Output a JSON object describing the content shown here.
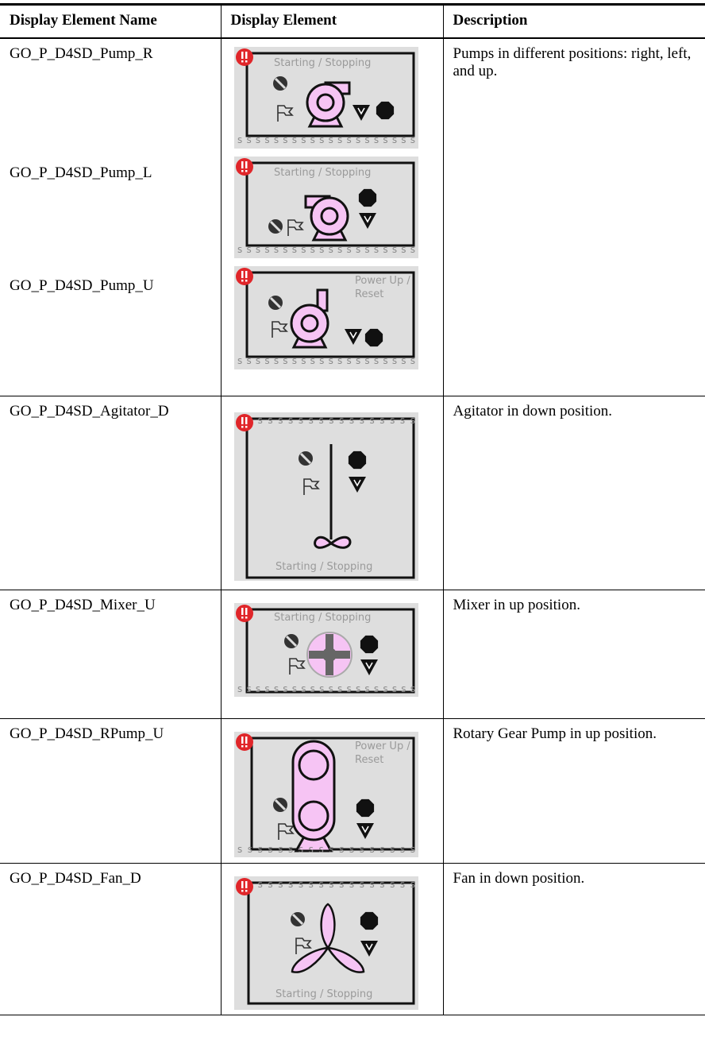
{
  "table": {
    "columns": [
      "Display Element Name",
      "Display Element",
      "Description"
    ],
    "rows": [
      {
        "names": [
          "GO_P_D4SD_Pump_R",
          "GO_P_D4SD_Pump_L",
          "GO_P_D4SD_Pump_U"
        ],
        "elements": [
          {
            "status": "Starting / Stopping",
            "bar": "ssssssssssssssssssss"
          },
          {
            "status": "Starting / Stopping",
            "bar": "ssssssssssssssssssss"
          },
          {
            "status": "Power Up / Reset",
            "bar": "ssssssssssssssssssss"
          }
        ],
        "description": "Pumps in different positions: right, left, and up."
      },
      {
        "names": [
          "GO_P_D4SD_Agitator_D"
        ],
        "elements": [
          {
            "status": "Starting / Stopping",
            "bar": "ssssssssssssssssss"
          }
        ],
        "description": "Agitator in down position."
      },
      {
        "names": [
          "GO_P_D4SD_Mixer_U"
        ],
        "elements": [
          {
            "status": "Starting / Stopping",
            "bar": "ssssssssssssssssssss"
          }
        ],
        "description": "Mixer in up position."
      },
      {
        "names": [
          "GO_P_D4SD_RPump_U"
        ],
        "elements": [
          {
            "status": "Power Up / Reset",
            "bar": "ssssssssssssssssss"
          }
        ],
        "description": "Rotary Gear Pump in up position."
      },
      {
        "names": [
          "GO_P_D4SD_Fan_D"
        ],
        "elements": [
          {
            "status": "Starting / Stopping",
            "bar": "ssssssssssssssssss"
          }
        ],
        "description": "Fan in down position."
      }
    ]
  }
}
